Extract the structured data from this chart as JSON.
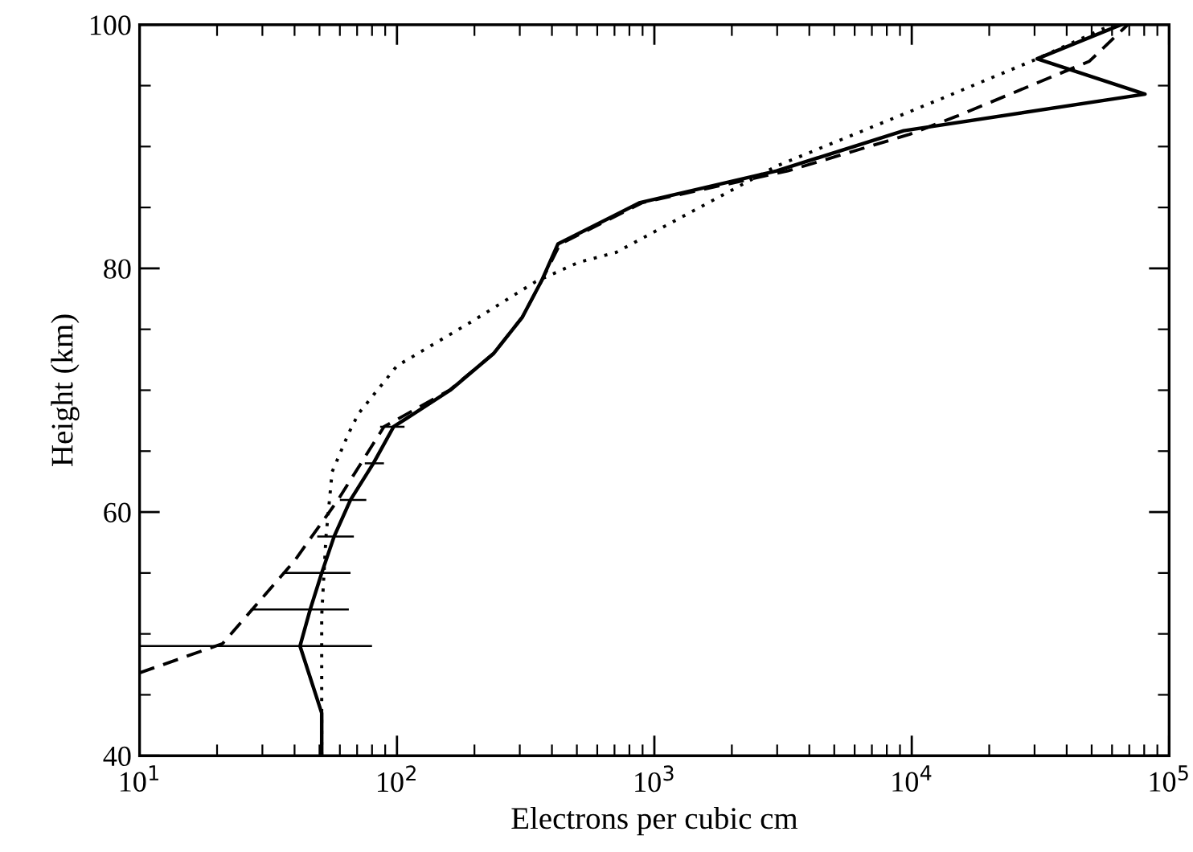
{
  "chart_data": {
    "type": "line",
    "xlabel": "Electrons per cubic cm",
    "ylabel": "Height (km)",
    "log": "x",
    "grid": false,
    "legend": false,
    "marker": "none",
    "xlim": [
      10,
      100000
    ],
    "ylim": [
      40,
      100
    ],
    "xticks": [
      {
        "value": 10,
        "label": "10$^{1}$"
      },
      {
        "value": 100,
        "label": "10$^{2}$"
      },
      {
        "value": 1000,
        "label": "10$^{3}$"
      },
      {
        "value": 10000,
        "label": "10$^{4}$"
      },
      {
        "value": 100000,
        "label": "10$^{5}$"
      }
    ],
    "yticks": [
      40,
      {
        "value": 45,
        "label": null
      },
      {
        "value": 50,
        "label": null
      },
      {
        "value": 55,
        "label": null
      },
      60,
      {
        "value": 65,
        "label": null
      },
      {
        "value": 70,
        "label": null
      },
      {
        "value": 75,
        "label": null
      },
      80,
      {
        "value": 85,
        "label": null
      },
      {
        "value": 90,
        "label": null
      },
      {
        "value": 95,
        "label": null
      },
      100
    ],
    "series": [
      {
        "color": "#000000",
        "line_style": "solid",
        "x": [
          51,
          51,
          42,
          46,
          51,
          57,
          66,
          81,
          97,
          161,
          237,
          307,
          365,
          422,
          879,
          2985,
          9310,
          80600,
          30700,
          65000
        ],
        "values": [
          40,
          43.5,
          49,
          52,
          55,
          58,
          61,
          64,
          67,
          70,
          73,
          76,
          79,
          82,
          85.4,
          88,
          91.3,
          94.3,
          97.2,
          100
        ],
        "xerrors": [
          null,
          null,
          [
            10,
            80
          ],
          [
            27,
            65
          ],
          [
            36,
            66
          ],
          [
            49,
            68
          ],
          [
            60,
            76
          ],
          [
            75,
            89
          ],
          [
            86,
            107
          ],
          null,
          null,
          null,
          null,
          null,
          null,
          null,
          null,
          null,
          null,
          null
        ]
      },
      {
        "color": "#000000",
        "line_style": "dashed",
        "x": [
          10,
          21,
          40,
          59,
          89,
          160,
          237,
          307,
          365,
          430,
          900,
          3300,
          9800,
          15000,
          49000,
          69000
        ],
        "values": [
          46.8,
          49.2,
          56,
          61,
          67,
          70,
          73,
          76,
          79,
          82,
          85.4,
          88,
          91,
          92.5,
          97,
          100
        ]
      },
      {
        "color": "#000000",
        "line_style": "dotted",
        "x": [
          51,
          51,
          53,
          56,
          65,
          71,
          100,
          194,
          345,
          508,
          708,
          2985,
          12600,
          29900,
          60000
        ],
        "values": [
          40,
          51.5,
          58,
          63.3,
          66.5,
          68.1,
          72,
          75.6,
          78.9,
          80.5,
          81.3,
          88.4,
          93.8,
          97.1,
          100
        ]
      }
    ]
  }
}
